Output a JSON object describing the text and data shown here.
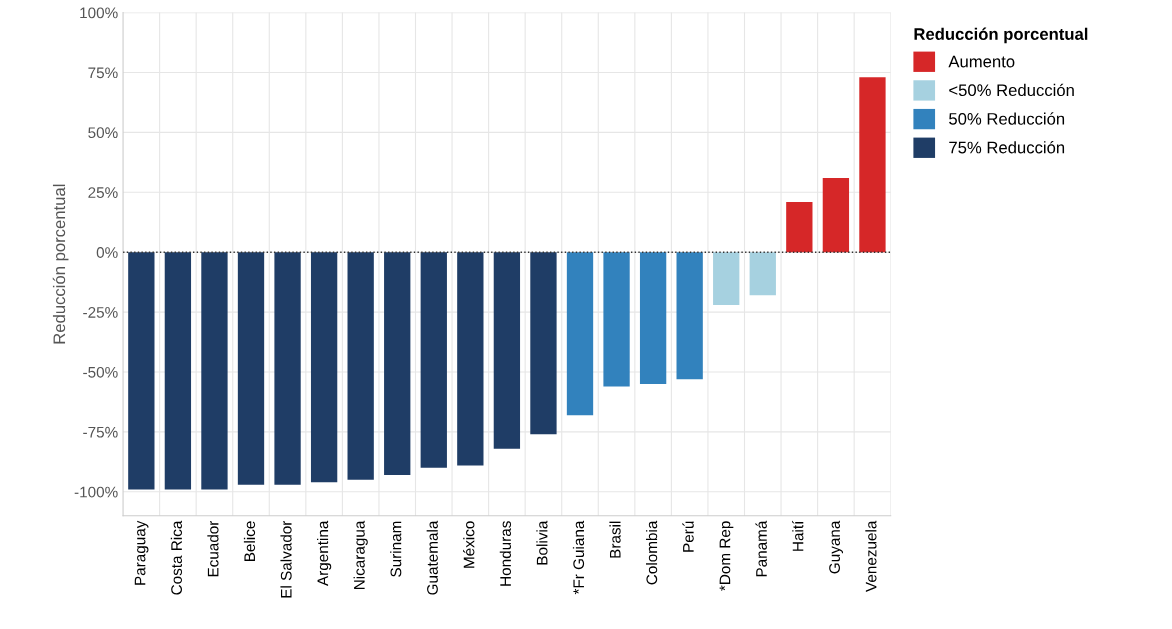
{
  "chart_data": {
    "type": "bar",
    "ylabel": "Reducción porcentual",
    "legend_title": "Reducción porcentual",
    "legend": "top right",
    "grid": true,
    "categories": [
      "Paraguay",
      "Costa Rica",
      "Ecuador",
      "Belice",
      "El Salvador",
      "Argentina",
      "Nicaragua",
      "Surinam",
      "Guatemala",
      "México",
      "Honduras",
      "Bolivia",
      "*Fr Guiana",
      "Brasil",
      "Colombia",
      "Perú",
      "*Dom Rep",
      "Panamá",
      "Haití",
      "Guyana",
      "Venezuela"
    ],
    "series": [
      {
        "name": "Aumento",
        "color": "#d62728",
        "values": [
          null,
          null,
          null,
          null,
          null,
          null,
          null,
          null,
          null,
          null,
          null,
          null,
          null,
          null,
          null,
          null,
          null,
          null,
          21,
          31,
          73
        ]
      },
      {
        "name": "<50% Reducción",
        "color": "#a6d1e0",
        "values": [
          null,
          null,
          null,
          null,
          null,
          null,
          null,
          null,
          null,
          null,
          null,
          null,
          null,
          null,
          null,
          null,
          -22,
          -18,
          null,
          null,
          null
        ]
      },
      {
        "name": "50% Reducción",
        "color": "#3282bd",
        "values": [
          null,
          null,
          null,
          null,
          null,
          null,
          null,
          null,
          null,
          null,
          null,
          null,
          -68,
          -56,
          -55,
          -53,
          null,
          null,
          null,
          null,
          null
        ]
      },
      {
        "name": "75% Reducción",
        "color": "#1f3d66",
        "values": [
          -99,
          -99,
          -99,
          -97,
          -97,
          -96,
          -95,
          -93,
          -90,
          -89,
          -82,
          -76,
          null,
          null,
          null,
          null,
          null,
          null,
          null,
          null,
          null
        ]
      }
    ],
    "ylim": [
      -110,
      100
    ],
    "yticks": [
      {
        "value": -100,
        "label": "-100%"
      },
      {
        "value": -75,
        "label": "-75%"
      },
      {
        "value": -50,
        "label": "-50%"
      },
      {
        "value": -25,
        "label": "-25%"
      },
      {
        "value": 0,
        "label": "0%"
      },
      {
        "value": 25,
        "label": "25%"
      },
      {
        "value": 50,
        "label": "50%"
      },
      {
        "value": 75,
        "label": "75%"
      },
      {
        "value": 100,
        "label": "100%"
      }
    ],
    "ref_lines": [
      {
        "axis": "y",
        "value": 0,
        "color": "#333333",
        "line_style": "dotted"
      }
    ]
  }
}
